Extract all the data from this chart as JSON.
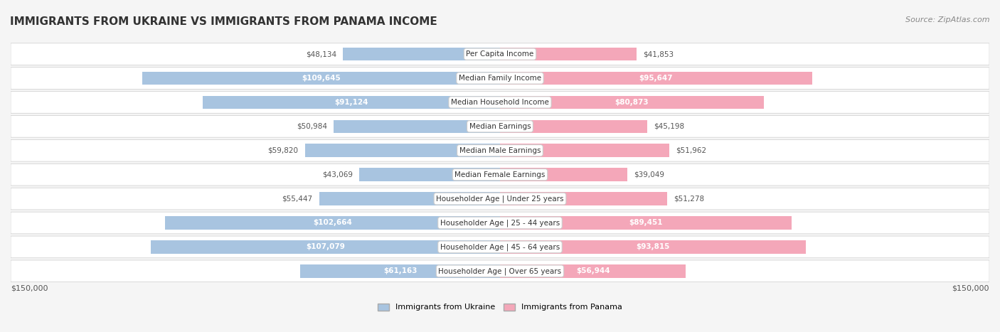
{
  "title": "IMMIGRANTS FROM UKRAINE VS IMMIGRANTS FROM PANAMA INCOME",
  "source": "Source: ZipAtlas.com",
  "categories": [
    "Per Capita Income",
    "Median Family Income",
    "Median Household Income",
    "Median Earnings",
    "Median Male Earnings",
    "Median Female Earnings",
    "Householder Age | Under 25 years",
    "Householder Age | 25 - 44 years",
    "Householder Age | 45 - 64 years",
    "Householder Age | Over 65 years"
  ],
  "ukraine_values": [
    48134,
    109645,
    91124,
    50984,
    59820,
    43069,
    55447,
    102664,
    107079,
    61163
  ],
  "panama_values": [
    41853,
    95647,
    80873,
    45198,
    51962,
    39049,
    51278,
    89451,
    93815,
    56944
  ],
  "ukraine_labels": [
    "$48,134",
    "$109,645",
    "$91,124",
    "$50,984",
    "$59,820",
    "$43,069",
    "$55,447",
    "$102,664",
    "$107,079",
    "$61,163"
  ],
  "panama_labels": [
    "$41,853",
    "$95,647",
    "$80,873",
    "$45,198",
    "$51,962",
    "$39,049",
    "$51,278",
    "$89,451",
    "$93,815",
    "$56,944"
  ],
  "ukraine_color": "#a8c4e0",
  "ukraine_color_dark": "#7bafd4",
  "panama_color": "#f4a7b9",
  "panama_color_dark": "#e87fa0",
  "ukraine_label_bg": "#7bafd4",
  "panama_label_bg": "#e87fa0",
  "max_value": 150000,
  "bg_color": "#f5f5f5",
  "row_bg_color": "#ffffff",
  "legend_ukraine": "Immigrants from Ukraine",
  "legend_panama": "Immigrants from Panama",
  "ukraine_text_threshold": 60000,
  "panama_text_threshold": 55000
}
